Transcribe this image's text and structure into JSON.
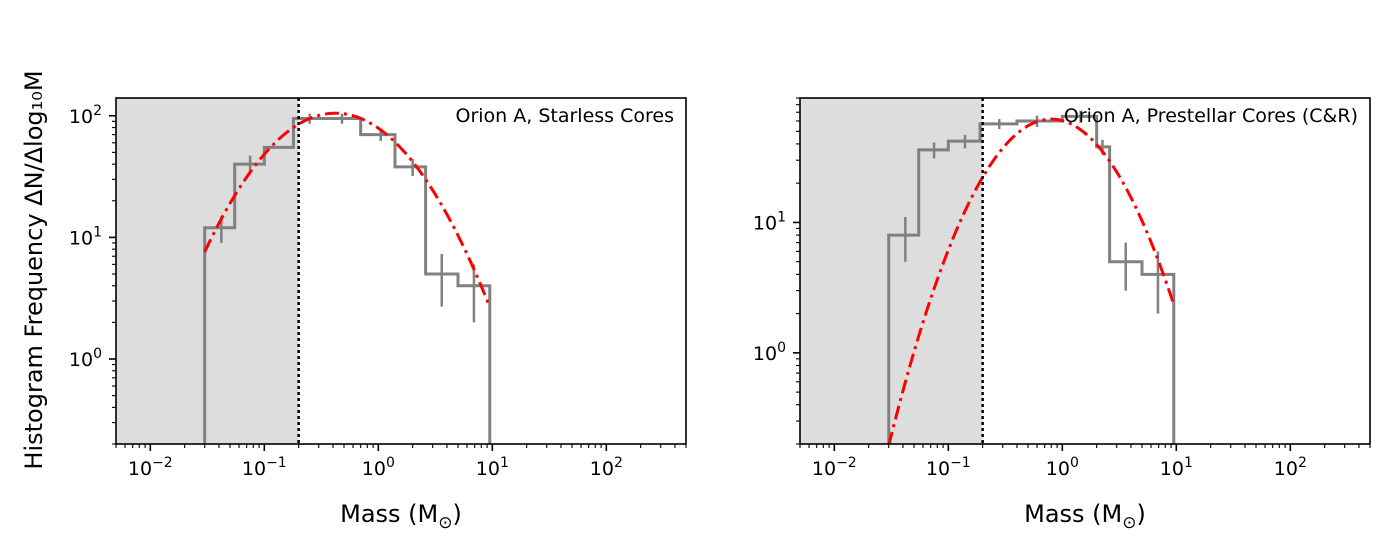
{
  "figure": {
    "ylabel": "Histogram Frequency ΔN/Δlog₁₀M"
  },
  "chart_data": [
    {
      "type": "histogram",
      "title": "",
      "annotation": "Orion A, Starless Cores",
      "xlabel": "Mass (M⊙)",
      "ylabel": "Histogram Frequency ΔN/Δlog₁₀M",
      "xscale": "log",
      "yscale": "log",
      "xlim": [
        0.005,
        500
      ],
      "ylim": [
        0.2,
        140
      ],
      "xticks": [
        {
          "value": 0.01,
          "base": "10",
          "exp": "−2"
        },
        {
          "value": 0.1,
          "base": "10",
          "exp": "−1"
        },
        {
          "value": 1,
          "base": "10",
          "exp": "0"
        },
        {
          "value": 10,
          "base": "10",
          "exp": "1"
        },
        {
          "value": 100,
          "base": "10",
          "exp": "2"
        }
      ],
      "yticks": [
        {
          "value": 1,
          "base": "10",
          "exp": "0"
        },
        {
          "value": 10,
          "base": "10",
          "exp": "1"
        },
        {
          "value": 100,
          "base": "10",
          "exp": "2"
        }
      ],
      "completeness_limit": 0.2,
      "shaded_region": [
        0.005,
        0.2
      ],
      "bin_edges": [
        0.03,
        0.055,
        0.1,
        0.18,
        0.33,
        0.7,
        1.4,
        2.6,
        5,
        9.5
      ],
      "counts": [
        12,
        40,
        55,
        95,
        95,
        70,
        38,
        5,
        4
      ],
      "errors": [
        {
          "x": 0.042,
          "y": 12,
          "lo": 9,
          "hi": 15
        },
        {
          "x": 0.075,
          "y": 40,
          "lo": 34,
          "hi": 47
        },
        {
          "x": 0.25,
          "y": 95,
          "lo": 86,
          "hi": 104
        },
        {
          "x": 0.48,
          "y": 95,
          "lo": 86,
          "hi": 104
        },
        {
          "x": 1.05,
          "y": 70,
          "lo": 62,
          "hi": 78
        },
        {
          "x": 2.0,
          "y": 38,
          "lo": 32,
          "hi": 44
        },
        {
          "x": 3.6,
          "y": 5,
          "lo": 2.7,
          "hi": 7.3
        },
        {
          "x": 6.9,
          "y": 4,
          "lo": 2,
          "hi": 6
        }
      ],
      "fit": {
        "type": "lognormal",
        "style": "dash-dot",
        "peak": 105,
        "peak_mass": 0.42,
        "sigma_dex": 0.5,
        "range": [
          0.03,
          9.5
        ]
      },
      "colors": {
        "hist": "#808080",
        "fit": "#ff0000",
        "shade": "#dddddd"
      }
    },
    {
      "type": "histogram",
      "title": "",
      "annotation": "Orion A, Prestellar Cores (C&R)",
      "xlabel": "Mass (M⊙)",
      "ylabel": "",
      "xscale": "log",
      "yscale": "log",
      "xlim": [
        0.005,
        500
      ],
      "ylim": [
        0.2,
        90
      ],
      "xticks": [
        {
          "value": 0.01,
          "base": "10",
          "exp": "−2"
        },
        {
          "value": 0.1,
          "base": "10",
          "exp": "−1"
        },
        {
          "value": 1,
          "base": "10",
          "exp": "0"
        },
        {
          "value": 10,
          "base": "10",
          "exp": "1"
        },
        {
          "value": 100,
          "base": "10",
          "exp": "2"
        }
      ],
      "yticks": [
        {
          "value": 1,
          "base": "10",
          "exp": "0"
        },
        {
          "value": 10,
          "base": "10",
          "exp": "1"
        }
      ],
      "completeness_limit": 0.2,
      "shaded_region": [
        0.005,
        0.2
      ],
      "bin_edges": [
        0.03,
        0.055,
        0.1,
        0.19,
        0.4,
        1.0,
        2.0,
        2.6,
        5,
        9.5
      ],
      "counts": [
        8,
        36,
        42,
        57,
        60,
        65,
        38,
        5,
        4
      ],
      "errors": [
        {
          "x": 0.042,
          "y": 8,
          "lo": 5,
          "hi": 11
        },
        {
          "x": 0.075,
          "y": 36,
          "lo": 31,
          "hi": 41
        },
        {
          "x": 0.14,
          "y": 42,
          "lo": 37,
          "hi": 47
        },
        {
          "x": 0.28,
          "y": 57,
          "lo": 52,
          "hi": 62
        },
        {
          "x": 0.6,
          "y": 60,
          "lo": 54,
          "hi": 66
        },
        {
          "x": 1.45,
          "y": 65,
          "lo": 58,
          "hi": 72
        },
        {
          "x": 2.25,
          "y": 38,
          "lo": 33,
          "hi": 43
        },
        {
          "x": 3.6,
          "y": 5,
          "lo": 3,
          "hi": 7
        },
        {
          "x": 6.9,
          "y": 4,
          "lo": 2,
          "hi": 6
        }
      ],
      "fit": {
        "type": "lognormal",
        "style": "dash-dot",
        "peak": 62,
        "peak_mass": 0.8,
        "sigma_dex": 0.42,
        "range": [
          0.03,
          9.5
        ]
      },
      "colors": {
        "hist": "#808080",
        "fit": "#ff0000",
        "shade": "#dddddd"
      }
    }
  ]
}
